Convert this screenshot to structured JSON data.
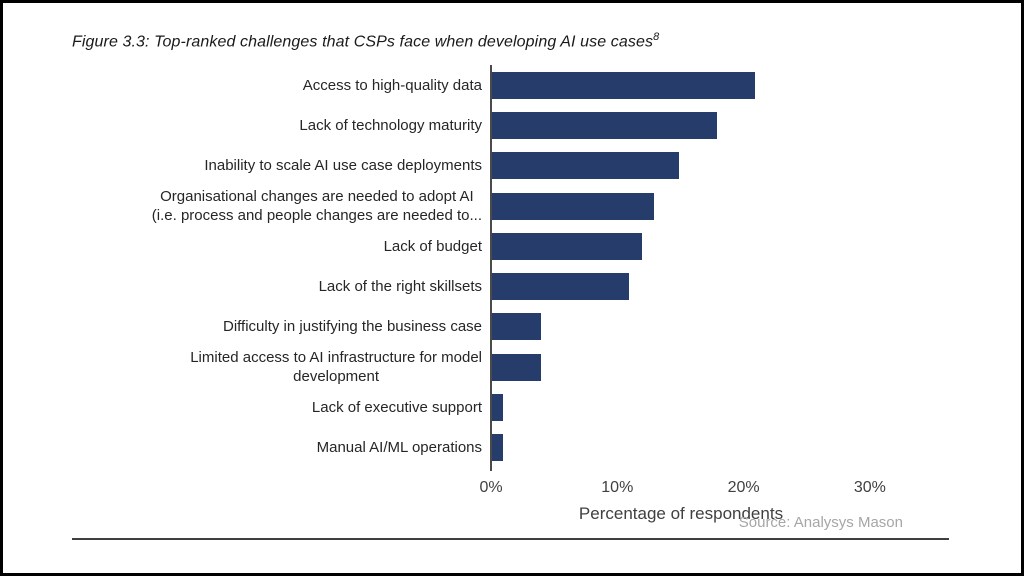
{
  "page": {
    "title_text": "Figure 3.3: Top-ranked challenges that CSPs face when developing AI use cases",
    "title_superscript": "8",
    "source": "Source: Analysys Mason"
  },
  "chart_data": {
    "type": "bar",
    "orientation": "horizontal",
    "title": "Figure 3.3: Top-ranked challenges that CSPs face when developing AI use cases",
    "xlabel": "Percentage of respondents",
    "categories": [
      "Access to high-quality data",
      "Lack of technology maturity",
      "Inability to scale AI use case deployments",
      "Organisational changes are needed to adopt AI\n(i.e. process and people changes are needed to...",
      "Lack of budget",
      "Lack of the right skillsets",
      "Difficulty in justifying the business case",
      "Limited access to AI infrastructure for model\ndevelopment",
      "Lack of executive support",
      "Manual AI/ML operations"
    ],
    "values": [
      21,
      18,
      15,
      13,
      12,
      11,
      4,
      4,
      1,
      1
    ],
    "unit": "%",
    "xlim": [
      0,
      30
    ],
    "x_ticks": [
      0,
      10,
      20,
      30
    ],
    "x_tick_labels": [
      "0%",
      "10%",
      "20%",
      "30%"
    ],
    "bar_color": "#263D6B",
    "axis_line_color": "#4A4A4A",
    "gridlines": false,
    "legend": false
  }
}
